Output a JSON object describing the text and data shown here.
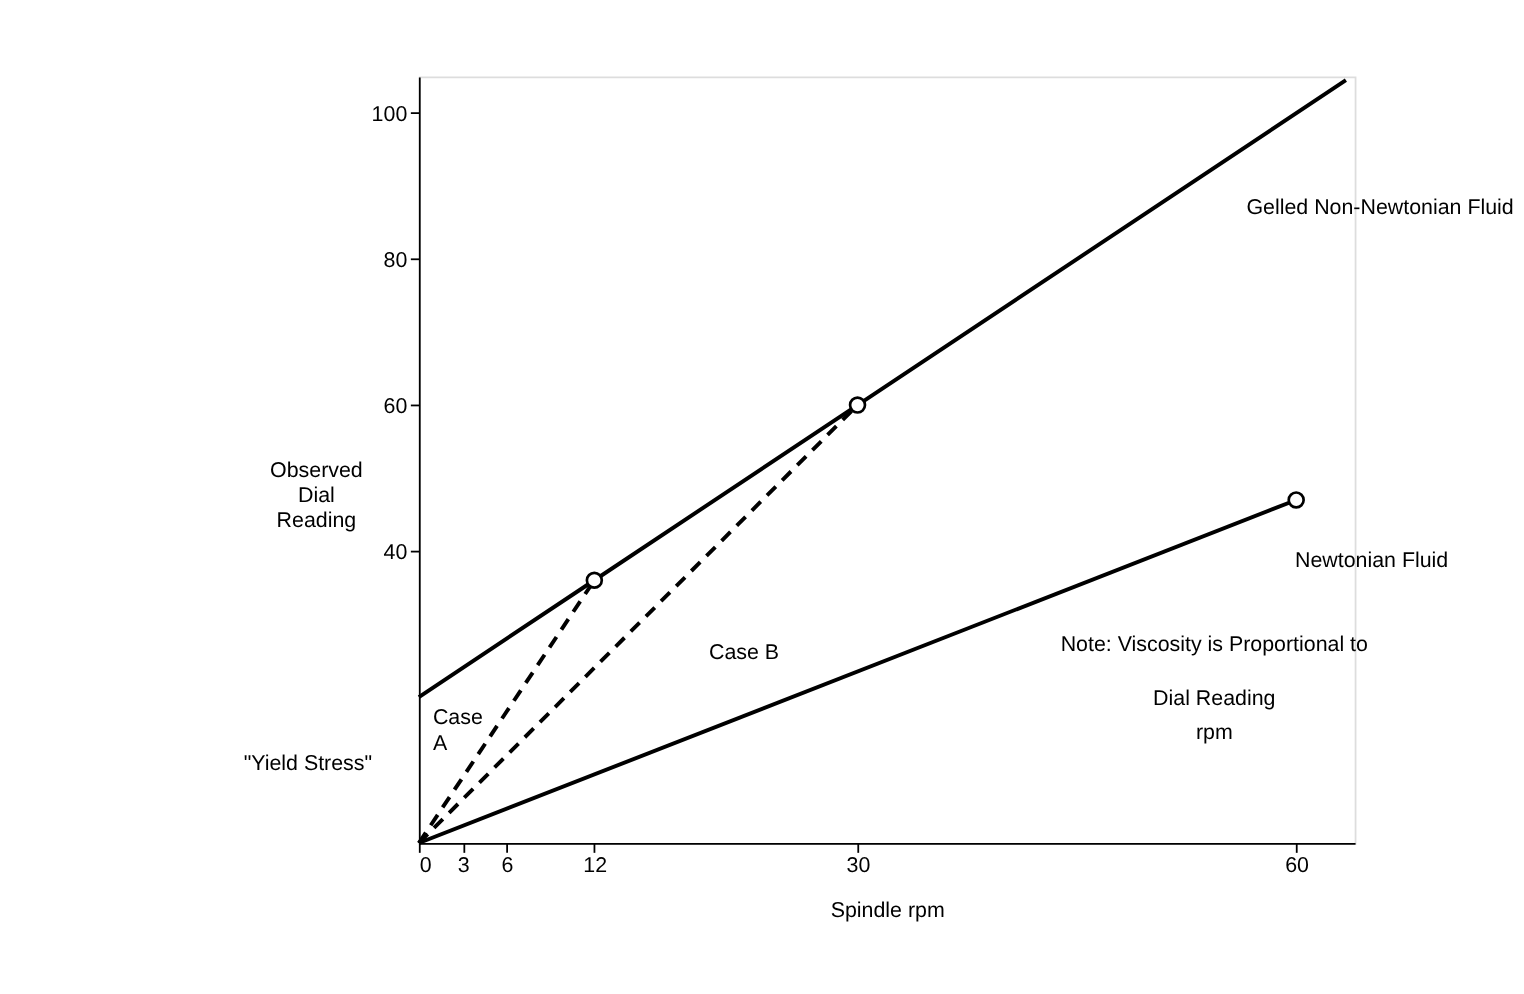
{
  "chart_data": {
    "type": "line",
    "xlabel": "Spindle rpm",
    "ylabel": "Observed Dial Reading",
    "xlim": [
      0,
      64
    ],
    "ylim": [
      0,
      105
    ],
    "xticks": [
      0,
      3,
      6,
      12,
      30,
      60
    ],
    "yticks": [
      40,
      60,
      80,
      100
    ],
    "grid": false,
    "series": [
      {
        "color": "#000000",
        "line_style": "solid",
        "marker": "none",
        "x": [
          0,
          12,
          30,
          63.4
        ],
        "values": [
          20,
          36,
          60,
          104.5
        ]
      },
      {
        "color": "#000000",
        "line_style": "solid",
        "marker": "none",
        "x": [
          0,
          60
        ],
        "values": [
          0,
          47
        ]
      },
      {
        "color": "#000000",
        "line_style": "dashed",
        "marker": "none",
        "x": [
          0,
          12
        ],
        "values": [
          0,
          36
        ]
      },
      {
        "color": "#000000",
        "line_style": "dashed",
        "marker": "none",
        "x": [
          0,
          30
        ],
        "values": [
          0,
          60
        ]
      },
      {
        "type": "scatter",
        "color": "#000000",
        "marker": "circle",
        "x": [
          12,
          30,
          60
        ],
        "values": [
          36,
          60,
          47
        ]
      }
    ],
    "annotations": [
      "Case A",
      "Note: Viscosity is Proportional to",
      "Dial Reading",
      "rpm",
      "Gelled Non-Newtonian Fluid",
      "Newtonian Fluid",
      "Case B",
      "\"Yield Stress\""
    ]
  }
}
